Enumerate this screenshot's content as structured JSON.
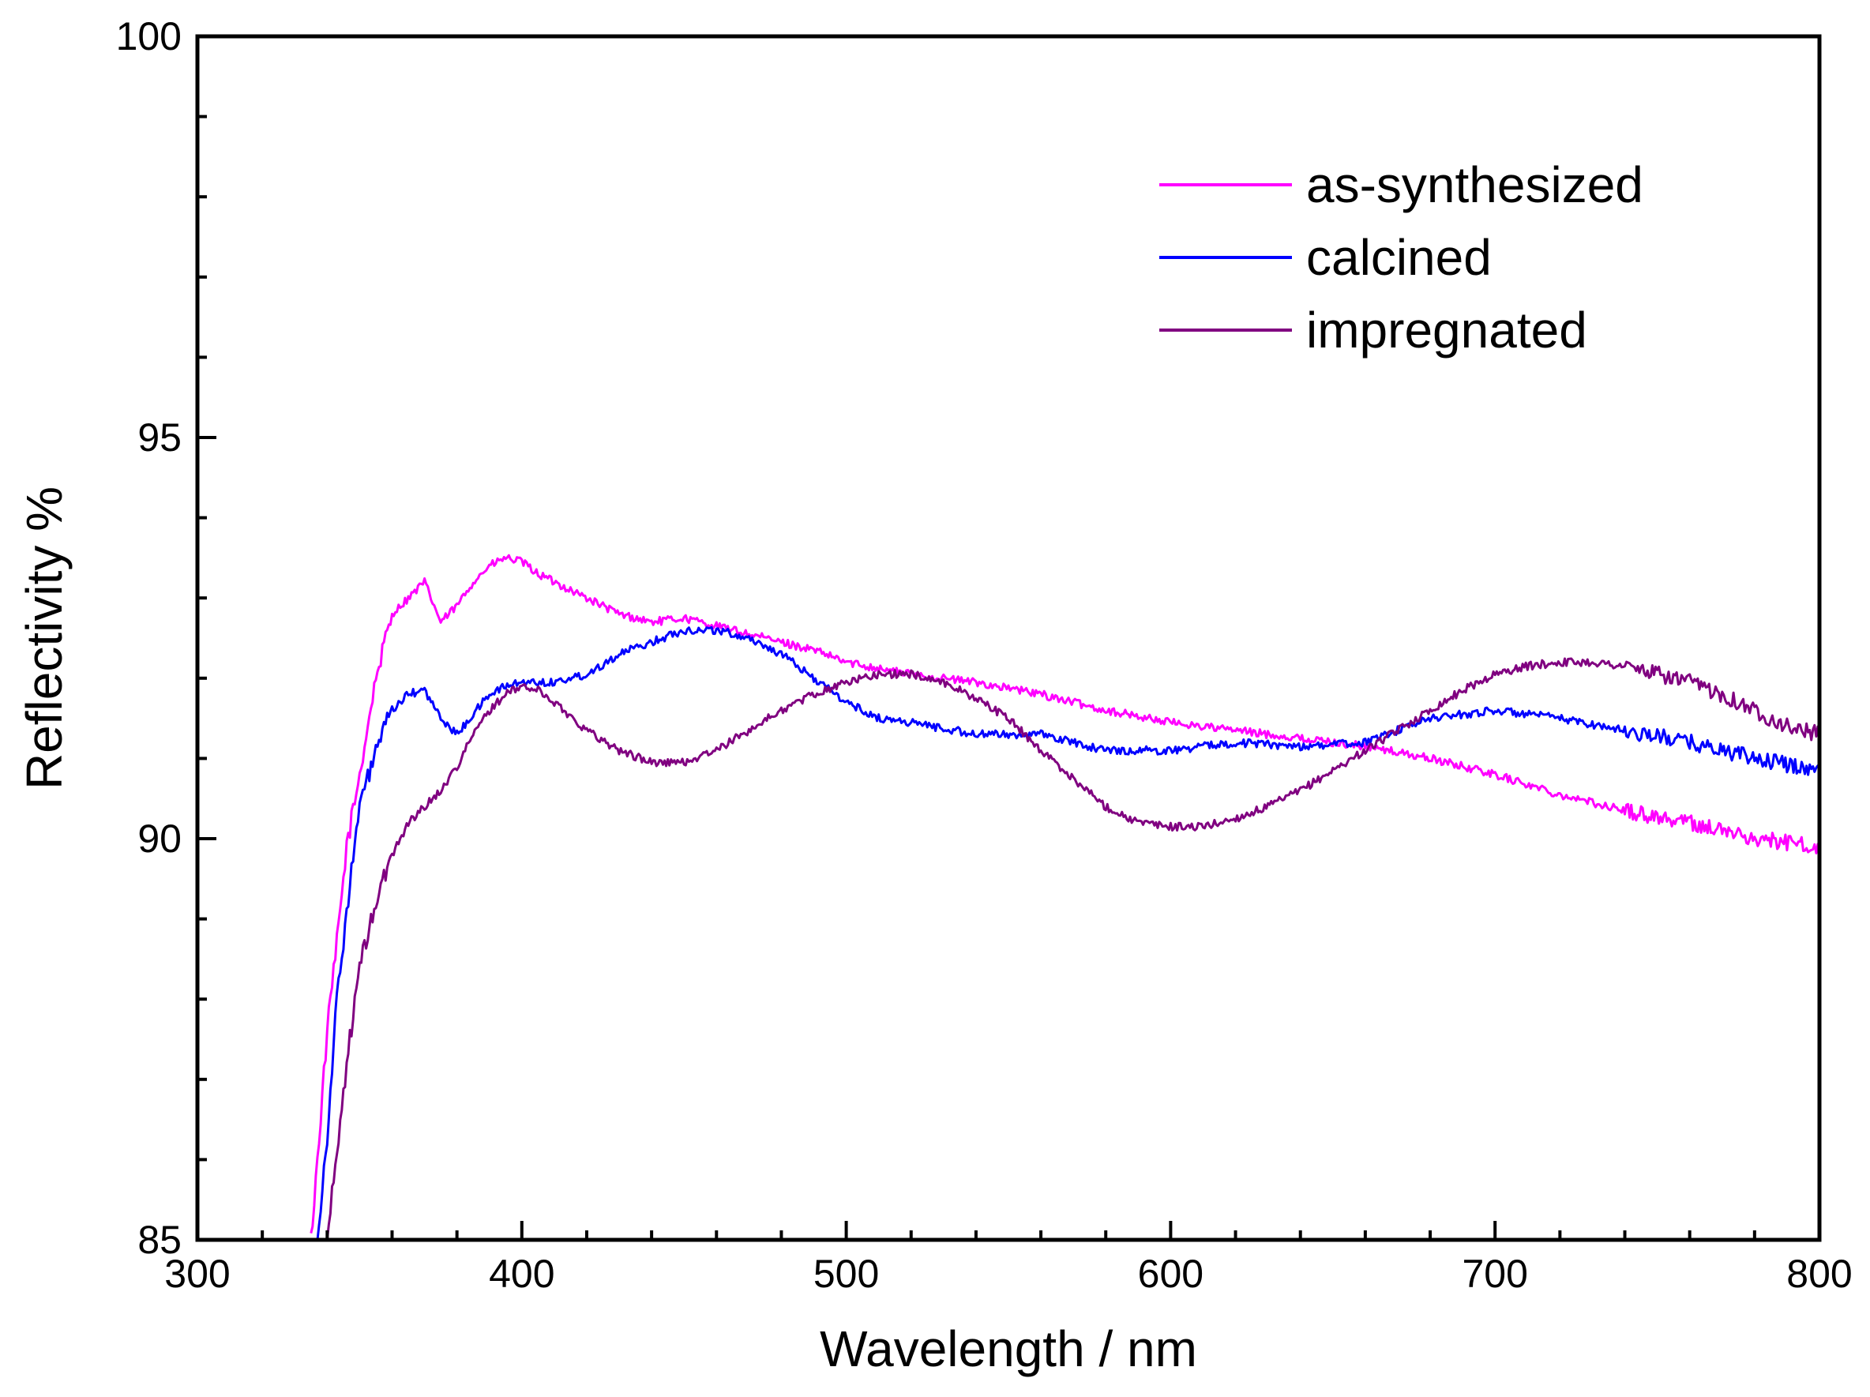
{
  "chart_data": {
    "type": "line",
    "title": "",
    "xlabel": "Wavelength / nm",
    "ylabel": "Reflectivity %",
    "xlim": [
      300,
      800
    ],
    "ylim": [
      85,
      100
    ],
    "x_ticks": [
      300,
      400,
      500,
      600,
      700,
      800
    ],
    "y_ticks": [
      85,
      90,
      95,
      100
    ],
    "x_minor_step": 20,
    "y_minor_step": 1,
    "grid": false,
    "legend_position": "top-right",
    "series": [
      {
        "name": "as-synthesized",
        "color": "#ff00ff",
        "x": [
          335,
          337,
          340,
          343,
          346,
          350,
          355,
          360,
          365,
          370,
          375,
          380,
          385,
          390,
          395,
          400,
          405,
          410,
          420,
          430,
          440,
          450,
          460,
          470,
          480,
          490,
          500,
          520,
          540,
          560,
          580,
          600,
          620,
          640,
          660,
          680,
          700,
          720,
          740,
          760,
          780,
          800
        ],
        "y": [
          85.0,
          86.0,
          87.6,
          88.7,
          89.9,
          90.8,
          92.0,
          92.8,
          93.0,
          93.2,
          92.7,
          92.9,
          93.2,
          93.4,
          93.5,
          93.45,
          93.3,
          93.2,
          93.0,
          92.8,
          92.7,
          92.75,
          92.65,
          92.55,
          92.45,
          92.35,
          92.2,
          92.05,
          91.95,
          91.8,
          91.6,
          91.45,
          91.35,
          91.25,
          91.15,
          91.0,
          90.8,
          90.55,
          90.35,
          90.2,
          90.0,
          89.9
        ]
      },
      {
        "name": "calcined",
        "color": "#0000ff",
        "x": [
          337,
          340,
          343,
          346,
          350,
          355,
          360,
          365,
          370,
          375,
          380,
          385,
          390,
          395,
          400,
          410,
          420,
          430,
          440,
          450,
          460,
          470,
          480,
          490,
          500,
          510,
          520,
          540,
          560,
          580,
          600,
          620,
          640,
          660,
          680,
          700,
          720,
          740,
          760,
          780,
          800
        ],
        "y": [
          85.0,
          86.3,
          88.0,
          89.1,
          90.4,
          91.1,
          91.6,
          91.8,
          91.85,
          91.5,
          91.3,
          91.55,
          91.8,
          91.9,
          91.95,
          91.95,
          92.05,
          92.3,
          92.45,
          92.6,
          92.6,
          92.5,
          92.3,
          92.0,
          91.7,
          91.5,
          91.45,
          91.3,
          91.3,
          91.1,
          91.1,
          91.2,
          91.15,
          91.2,
          91.5,
          91.6,
          91.5,
          91.35,
          91.2,
          91.0,
          90.85
        ]
      },
      {
        "name": "impregnated",
        "color": "#800080",
        "x": [
          340,
          343,
          346,
          350,
          355,
          360,
          365,
          370,
          375,
          380,
          385,
          390,
          395,
          400,
          405,
          410,
          420,
          430,
          440,
          450,
          460,
          470,
          480,
          490,
          500,
          510,
          520,
          530,
          540,
          550,
          560,
          570,
          580,
          590,
          600,
          610,
          620,
          630,
          640,
          650,
          660,
          670,
          680,
          690,
          700,
          710,
          720,
          730,
          740,
          750,
          760,
          770,
          780,
          790,
          800
        ],
        "y": [
          85.0,
          86.1,
          87.2,
          88.4,
          89.2,
          89.8,
          90.2,
          90.4,
          90.6,
          90.9,
          91.3,
          91.6,
          91.8,
          91.9,
          91.85,
          91.7,
          91.35,
          91.1,
          90.95,
          90.95,
          91.1,
          91.35,
          91.6,
          91.8,
          91.95,
          92.05,
          92.05,
          91.95,
          91.75,
          91.5,
          91.1,
          90.75,
          90.4,
          90.2,
          90.15,
          90.15,
          90.25,
          90.4,
          90.6,
          90.85,
          91.1,
          91.35,
          91.6,
          91.85,
          92.05,
          92.15,
          92.2,
          92.2,
          92.15,
          92.05,
          91.95,
          91.8,
          91.6,
          91.4,
          91.3
        ]
      }
    ]
  }
}
